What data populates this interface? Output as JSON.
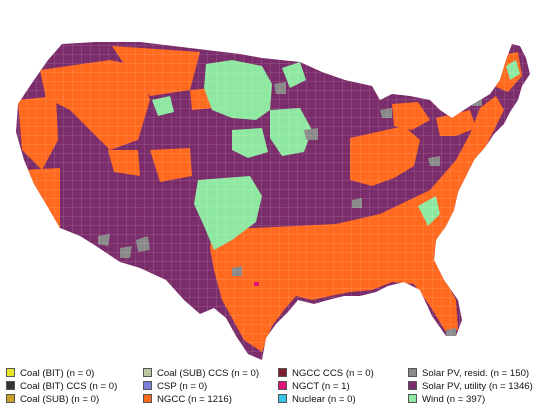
{
  "colors": {
    "background": "#ffffff",
    "state_border": "#ffffff",
    "county_border": "#9a8aa0",
    "coal_bit": "#e6e62a",
    "coal_bit_ccs": "#333333",
    "coal_sub": "#c9a227",
    "coal_sub_ccs": "#b9c7a0",
    "csp": "#7b7fd6",
    "ngcc": "#ff6a1f",
    "ngcc_ccs": "#7a1f2b",
    "ngct": "#e0127a",
    "nuclear": "#38c7e6",
    "solar_pv_resid": "#8a8a8a",
    "solar_pv_utility": "#7b2d6b",
    "wind": "#8fe8a2"
  },
  "legend": [
    [
      {
        "label": "Coal (BIT) (n = 0)",
        "color": "#e6e62a"
      },
      {
        "label": "Coal (BIT) CCS (n = 0)",
        "color": "#333333"
      },
      {
        "label": "Coal (SUB) (n = 0)",
        "color": "#c9a227"
      }
    ],
    [
      {
        "label": "Coal (SUB) CCS (n = 0)",
        "color": "#b9c7a0"
      },
      {
        "label": "CSP (n = 0)",
        "color": "#7b7fd6"
      },
      {
        "label": "NGCC (n = 1216)",
        "color": "#ff6a1f"
      }
    ],
    [
      {
        "label": "NGCC CCS (n = 0)",
        "color": "#7a1f2b"
      },
      {
        "label": "NGCT (n = 1)",
        "color": "#e0127a"
      },
      {
        "label": "Nuclear (n = 0)",
        "color": "#38c7e6"
      }
    ],
    [
      {
        "label": "Solar PV, resid. (n = 150)",
        "color": "#8a8a8a"
      },
      {
        "label": "Solar PV, utility (n = 1346)",
        "color": "#7b2d6b"
      },
      {
        "label": "Wind (n = 397)",
        "color": "#8fe8a2"
      }
    ]
  ]
}
